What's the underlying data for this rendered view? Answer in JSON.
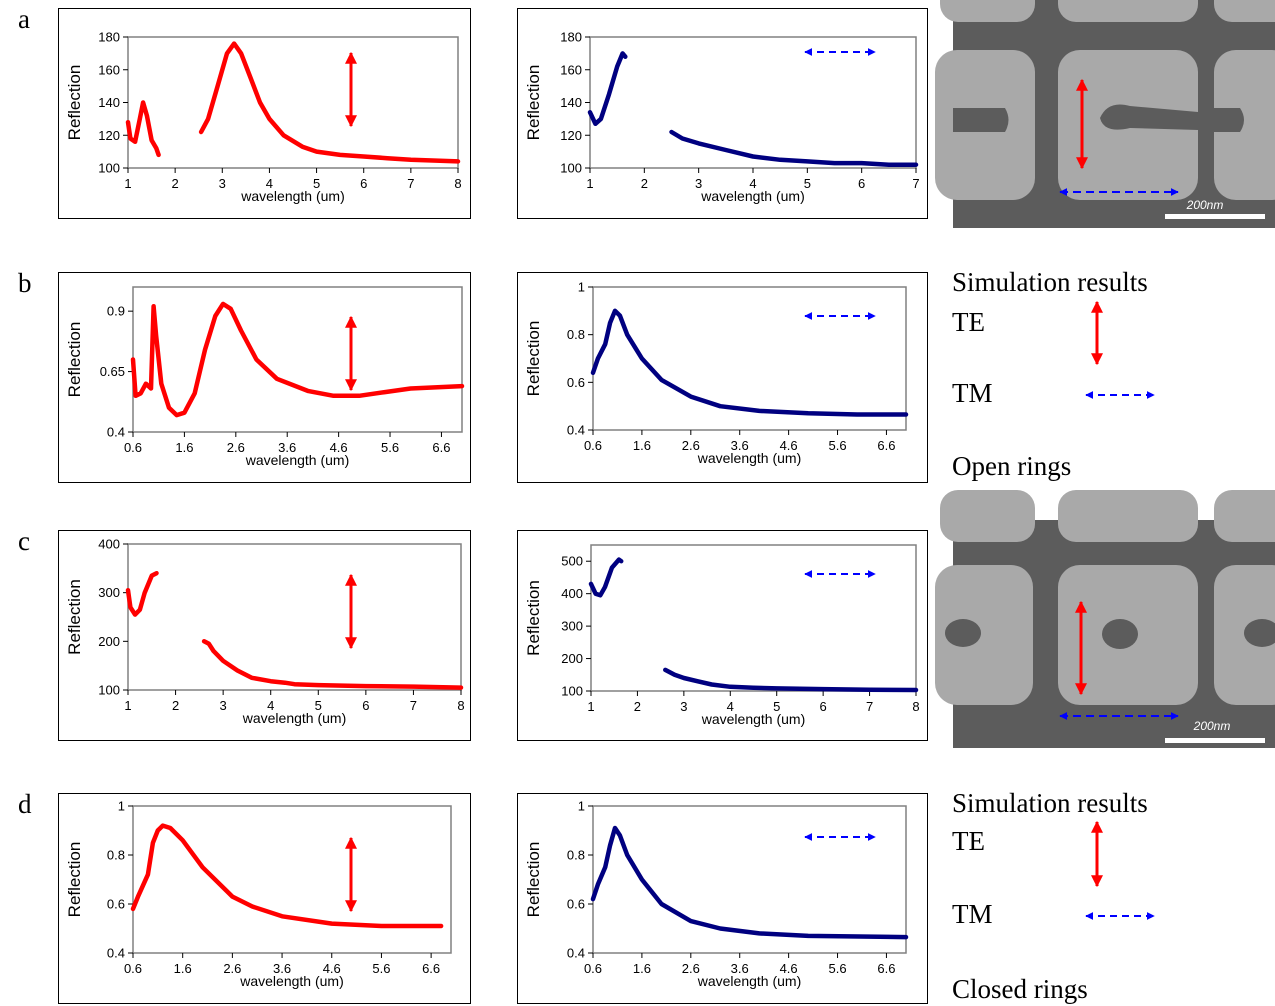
{
  "chart_data": [
    {
      "type": "line",
      "y_label": "Reflection",
      "x_label": "wavelength (um)",
      "color": "#ff0000",
      "x": [
        1.0,
        1.05,
        1.15,
        1.25,
        1.32,
        1.4,
        1.5,
        1.6,
        1.65,
        null,
        2.55,
        2.7,
        2.9,
        3.1,
        3.25,
        3.4,
        3.6,
        3.8,
        4.0,
        4.3,
        4.7,
        5.0,
        5.5,
        6.0,
        6.5,
        7.0,
        8.0
      ],
      "values": [
        128,
        118,
        116,
        130,
        140,
        132,
        117,
        112,
        108,
        null,
        122,
        130,
        150,
        170,
        176,
        170,
        155,
        140,
        130,
        120,
        113,
        110,
        108,
        107,
        106,
        105,
        104
      ],
      "xlim": [
        1,
        8
      ],
      "xticks": [
        1,
        2,
        3,
        4,
        5,
        6,
        7,
        8
      ],
      "ylim": [
        100,
        180
      ],
      "yticks": [
        100,
        120,
        140,
        160,
        180
      ]
    },
    {
      "type": "line",
      "y_label": "Reflection",
      "x_label": "wavelength (um)",
      "color": "#000080",
      "x": [
        1.0,
        1.1,
        1.2,
        1.35,
        1.5,
        1.6,
        1.65,
        null,
        2.5,
        2.7,
        3.0,
        3.5,
        4.0,
        4.5,
        5.0,
        5.5,
        6.0,
        6.5,
        7.0
      ],
      "values": [
        134,
        127,
        130,
        145,
        162,
        170,
        168,
        null,
        122,
        118,
        115,
        111,
        107,
        105,
        104,
        103,
        103,
        102,
        102
      ],
      "xlim": [
        1,
        7
      ],
      "xticks": [
        1,
        2,
        3,
        4,
        5,
        6,
        7
      ],
      "ylim": [
        100,
        180
      ],
      "yticks": [
        100,
        120,
        140,
        160,
        180
      ]
    },
    {
      "type": "line",
      "y_label": "Reflection",
      "x_label": "wavelength (um)",
      "color": "#ff0000",
      "x": [
        0.6,
        0.65,
        0.75,
        0.85,
        0.95,
        1.0,
        1.05,
        1.15,
        1.3,
        1.45,
        1.6,
        1.8,
        2.0,
        2.2,
        2.35,
        2.5,
        2.7,
        3.0,
        3.4,
        4.0,
        4.5,
        5.0,
        5.5,
        6.0,
        7.0
      ],
      "values": [
        0.7,
        0.55,
        0.56,
        0.6,
        0.58,
        0.92,
        0.8,
        0.6,
        0.5,
        0.47,
        0.48,
        0.56,
        0.74,
        0.88,
        0.93,
        0.91,
        0.82,
        0.7,
        0.62,
        0.57,
        0.55,
        0.55,
        0.565,
        0.58,
        0.59
      ],
      "xlim": [
        0.6,
        7
      ],
      "xticks": [
        0.6,
        1.6,
        2.6,
        3.6,
        4.6,
        5.6,
        6.6
      ],
      "ylim": [
        0.4,
        1.0
      ],
      "yticks": [
        0.4,
        0.65,
        0.9
      ]
    },
    {
      "type": "line",
      "y_label": "Reflection",
      "x_label": "wavelength (um)",
      "color": "#000080",
      "x": [
        0.6,
        0.7,
        0.85,
        0.95,
        1.05,
        1.15,
        1.3,
        1.6,
        2.0,
        2.6,
        3.2,
        4.0,
        5.0,
        6.0,
        7.0
      ],
      "values": [
        0.64,
        0.7,
        0.76,
        0.85,
        0.9,
        0.88,
        0.8,
        0.7,
        0.61,
        0.54,
        0.5,
        0.48,
        0.47,
        0.465,
        0.465
      ],
      "xlim": [
        0.6,
        7
      ],
      "xticks": [
        0.6,
        1.6,
        2.6,
        3.6,
        4.6,
        5.6,
        6.6
      ],
      "ylim": [
        0.4,
        1
      ],
      "yticks": [
        0.4,
        0.6,
        0.8,
        1
      ]
    },
    {
      "type": "line",
      "y_label": "Reflection",
      "x_label": "wavelength (um)",
      "color": "#ff0000",
      "x": [
        1.0,
        1.05,
        1.15,
        1.25,
        1.35,
        1.5,
        1.6,
        null,
        2.6,
        2.7,
        2.8,
        3.0,
        3.3,
        3.6,
        4.0,
        4.3,
        4.5,
        5.0,
        6.0,
        7.0,
        8.0
      ],
      "values": [
        305,
        270,
        255,
        265,
        300,
        335,
        340,
        null,
        200,
        195,
        180,
        160,
        140,
        125,
        118,
        115,
        112,
        110,
        108,
        107,
        105
      ],
      "xlim": [
        1,
        8
      ],
      "xticks": [
        1,
        2,
        3,
        4,
        5,
        6,
        7,
        8
      ],
      "ylim": [
        100,
        400
      ],
      "yticks": [
        100,
        200,
        300,
        400
      ]
    },
    {
      "type": "line",
      "y_label": "Reflection",
      "x_label": "wavelength (um)",
      "color": "#000080",
      "x": [
        1.0,
        1.1,
        1.2,
        1.3,
        1.45,
        1.6,
        1.65,
        null,
        2.6,
        2.8,
        3.0,
        3.3,
        3.6,
        4.0,
        4.5,
        5.0,
        6.0,
        7.0,
        8.0
      ],
      "values": [
        430,
        400,
        395,
        420,
        480,
        505,
        500,
        null,
        165,
        150,
        140,
        130,
        120,
        113,
        110,
        108,
        106,
        104,
        103
      ],
      "xlim": [
        1,
        8
      ],
      "xticks": [
        1,
        2,
        3,
        4,
        5,
        6,
        7,
        8
      ],
      "ylim": [
        100,
        550
      ],
      "yticks": [
        100,
        200,
        300,
        400,
        500
      ]
    },
    {
      "type": "line",
      "y_label": "Reflection",
      "x_label": "wavelength (um)",
      "color": "#ff0000",
      "x": [
        0.6,
        0.7,
        0.9,
        1.0,
        1.1,
        1.2,
        1.35,
        1.6,
        2.0,
        2.6,
        3.0,
        3.6,
        4.6,
        5.6,
        6.8
      ],
      "values": [
        0.58,
        0.63,
        0.72,
        0.85,
        0.9,
        0.92,
        0.91,
        0.86,
        0.75,
        0.63,
        0.59,
        0.55,
        0.52,
        0.51,
        0.51
      ],
      "xlim": [
        0.6,
        7
      ],
      "xticks": [
        0.6,
        1.6,
        2.6,
        3.6,
        4.6,
        5.6,
        6.6
      ],
      "ylim": [
        0.4,
        1
      ],
      "yticks": [
        0.4,
        0.6,
        0.8,
        1
      ]
    },
    {
      "type": "line",
      "y_label": "Reflection",
      "x_label": "wavelength (um)",
      "color": "#000080",
      "x": [
        0.6,
        0.7,
        0.85,
        0.95,
        1.05,
        1.15,
        1.3,
        1.6,
        2.0,
        2.6,
        3.2,
        4.0,
        5.0,
        7.0
      ],
      "values": [
        0.62,
        0.68,
        0.75,
        0.84,
        0.91,
        0.88,
        0.8,
        0.7,
        0.6,
        0.53,
        0.5,
        0.48,
        0.47,
        0.465
      ],
      "xlim": [
        0.6,
        7
      ],
      "xticks": [
        0.6,
        1.6,
        2.6,
        3.6,
        4.6,
        5.6,
        6.6
      ],
      "ylim": [
        0.4,
        1
      ],
      "yticks": [
        0.4,
        0.6,
        0.8,
        1
      ]
    }
  ],
  "panel_letters": [
    "a",
    "b",
    "c",
    "d"
  ],
  "side_notes": [
    {
      "heading": "Simulation results",
      "te": "TE",
      "tm": "TM",
      "caption": "Open rings"
    },
    {
      "heading": "Simulation results",
      "te": "TE",
      "tm": "TM",
      "caption": "Closed rings"
    }
  ],
  "scale_bars": [
    "200nm",
    "200nm"
  ]
}
